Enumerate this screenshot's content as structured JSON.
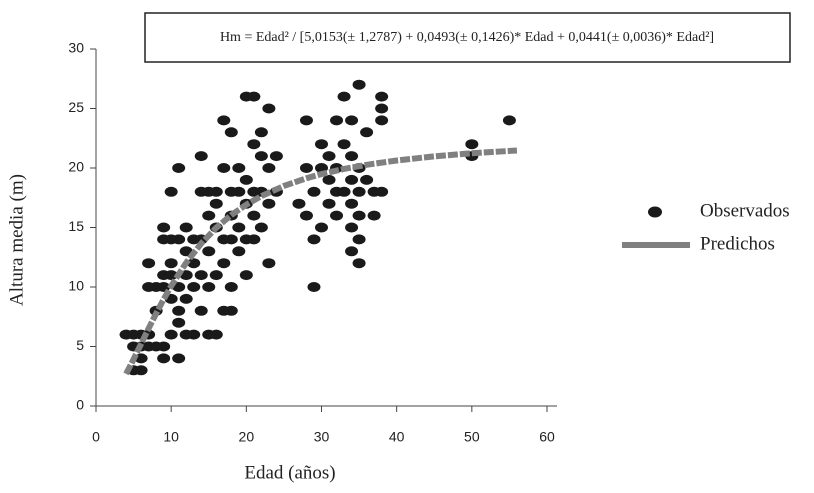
{
  "chart_data": {
    "type": "scatter",
    "title": "Hm = Edad² / [5,0153(± 1,2787) + 0,0493(± 0,1426)* Edad + 0,0441(± 0,0036)* Edad²]",
    "x_label": "Edad (años)",
    "y_label": "Altura media (m)",
    "xlim": [
      0,
      60
    ],
    "ylim": [
      0,
      30
    ],
    "xticks": [
      0,
      10,
      20,
      30,
      40,
      50,
      60
    ],
    "yticks": [
      0,
      5,
      10,
      15,
      20,
      25,
      30
    ],
    "grid": false,
    "legend": "right",
    "series": [
      {
        "name": "Observados",
        "type": "scatter",
        "color": "#1a1a1a",
        "x": [
          4,
          5,
          5,
          5,
          6,
          6,
          6,
          6,
          7,
          7,
          7,
          7,
          8,
          8,
          8,
          9,
          9,
          9,
          9,
          9,
          9,
          10,
          10,
          10,
          10,
          10,
          10,
          11,
          11,
          11,
          11,
          11,
          11,
          12,
          12,
          12,
          12,
          12,
          13,
          13,
          13,
          13,
          14,
          14,
          14,
          14,
          14,
          15,
          15,
          15,
          15,
          15,
          16,
          16,
          16,
          16,
          16,
          17,
          17,
          17,
          17,
          17,
          18,
          18,
          18,
          18,
          18,
          18,
          19,
          19,
          19,
          19,
          20,
          20,
          20,
          20,
          20,
          21,
          21,
          21,
          21,
          21,
          22,
          22,
          22,
          22,
          23,
          23,
          23,
          23,
          24,
          24,
          27,
          28,
          28,
          28,
          29,
          29,
          29,
          30,
          30,
          30,
          31,
          31,
          31,
          32,
          32,
          32,
          32,
          33,
          33,
          33,
          34,
          34,
          34,
          34,
          34,
          34,
          35,
          35,
          35,
          35,
          35,
          35,
          36,
          36,
          37,
          37,
          38,
          38,
          38,
          38,
          50,
          50,
          55
        ],
        "values": [
          6,
          3,
          5,
          6,
          3,
          4,
          5,
          6,
          5,
          6,
          10,
          12,
          5,
          8,
          10,
          4,
          5,
          10,
          11,
          14,
          15,
          6,
          9,
          11,
          12,
          14,
          18,
          4,
          7,
          8,
          10,
          14,
          20,
          6,
          9,
          11,
          13,
          15,
          6,
          10,
          12,
          14,
          8,
          11,
          14,
          18,
          21,
          6,
          10,
          13,
          16,
          18,
          6,
          11,
          15,
          17,
          18,
          8,
          12,
          14,
          20,
          24,
          8,
          10,
          14,
          16,
          18,
          23,
          13,
          15,
          18,
          20,
          11,
          14,
          17,
          19,
          26,
          14,
          16,
          18,
          22,
          26,
          15,
          18,
          21,
          23,
          12,
          17,
          20,
          25,
          18,
          21,
          17,
          16,
          20,
          24,
          10,
          14,
          18,
          15,
          20,
          22,
          17,
          19,
          21,
          16,
          18,
          20,
          24,
          18,
          22,
          26,
          13,
          15,
          17,
          19,
          21,
          24,
          12,
          14,
          16,
          18,
          20,
          27,
          19,
          23,
          16,
          18,
          18,
          24,
          25,
          26,
          21,
          22,
          24
        ]
      },
      {
        "name": "Predichos",
        "type": "line",
        "color": "#808080",
        "x": [
          4,
          5,
          6,
          7,
          8,
          9,
          10,
          12,
          14,
          16,
          18,
          20,
          22,
          25,
          28,
          30,
          33,
          36,
          40,
          45,
          50,
          56
        ],
        "values": [
          2.7,
          3.93,
          5.22,
          6.52,
          7.77,
          8.97,
          10.08,
          12.04,
          13.66,
          14.98,
          16.05,
          16.92,
          17.64,
          18.49,
          19.14,
          19.49,
          19.92,
          20.27,
          20.63,
          20.98,
          21.24,
          21.47
        ]
      }
    ]
  }
}
